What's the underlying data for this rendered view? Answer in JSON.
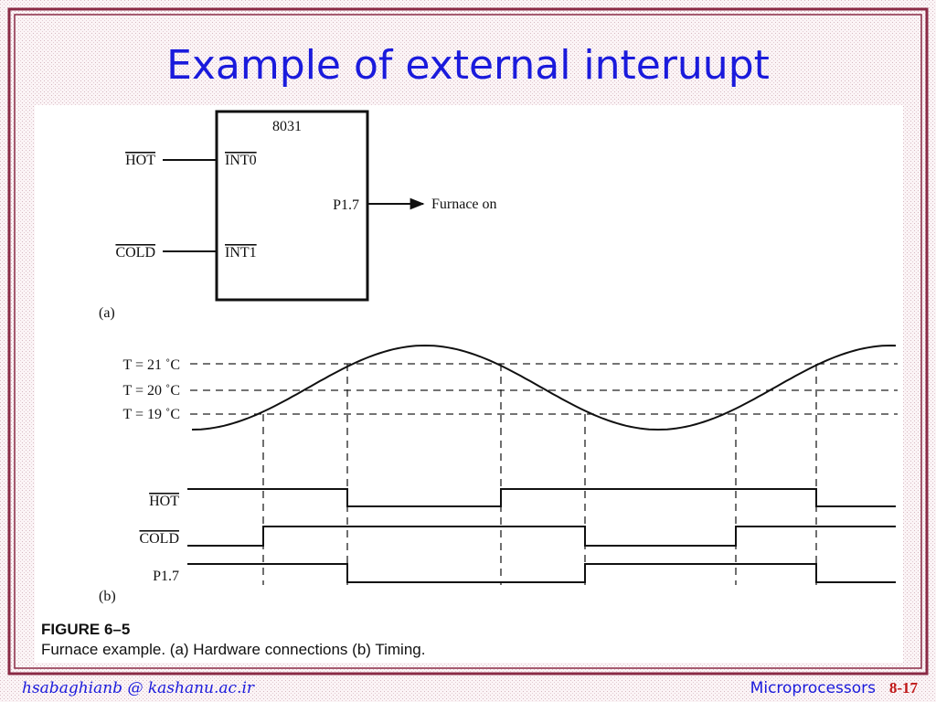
{
  "title": "Example of external interuupt",
  "hardware": {
    "chip": "8031",
    "inputs": [
      {
        "signal": "HOT",
        "pin": "INT0"
      },
      {
        "signal": "COLD",
        "pin": "INT1"
      }
    ],
    "output": {
      "pin": "P1.7",
      "label": "Furnace on"
    },
    "caption": "(a)"
  },
  "timing": {
    "levels": [
      "T = 21 ˚C",
      "T = 20 ˚C",
      "T = 19 ˚C"
    ],
    "signals": [
      "HOT",
      "COLD",
      "P1.7"
    ],
    "caption": "(b)"
  },
  "figure": {
    "number": "FIGURE 6–5",
    "caption": "Furnace example. (a) Hardware connections (b) Timing."
  },
  "footer": {
    "author": "hsabaghianb @ kashanu.ac.ir",
    "course": "Microprocessors",
    "slide": "8-17"
  }
}
